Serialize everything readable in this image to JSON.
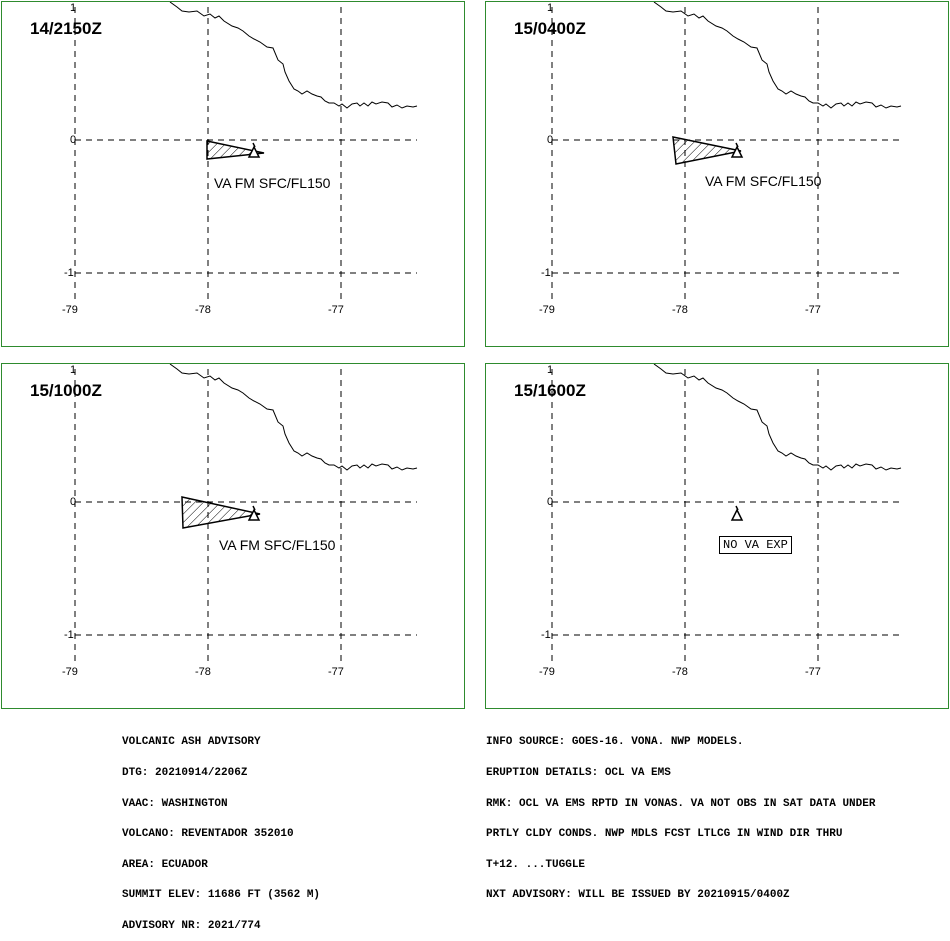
{
  "panels": [
    {
      "time": "14/2150Z",
      "label": "VA FM SFC/FL150",
      "ash": true
    },
    {
      "time": "15/0400Z",
      "label": "VA FM SFC/FL150",
      "ash": true
    },
    {
      "time": "15/1000Z",
      "label": "VA FM SFC/FL150",
      "ash": true
    },
    {
      "time": "15/1600Z",
      "label": "NO VA EXP",
      "ash": false
    }
  ],
  "axes": {
    "lon_ticks": [
      "-79",
      "-78",
      "-77"
    ],
    "lat_ticks": [
      "1",
      "0",
      "-1"
    ]
  },
  "advisory_left": [
    "VOLCANIC ASH ADVISORY",
    "DTG: 20210914/2206Z",
    "VAAC: WASHINGTON",
    "VOLCANO: REVENTADOR 352010",
    "AREA: ECUADOR",
    "SUMMIT ELEV: 11686 FT (3562 M)",
    "ADVISORY NR: 2021/774"
  ],
  "advisory_right": [
    "INFO SOURCE: GOES-16. VONA. NWP MODELS.",
    "ERUPTION DETAILS: OCL VA EMS",
    "RMK: OCL VA EMS RPTD IN VONAS. VA NOT OBS IN SAT DATA UNDER",
    "PRTLY CLDY CONDS. NWP MDLS FCST LTLCG IN WIND DIR THRU",
    "T+12. ...TUGGLE",
    "NXT ADVISORY: WILL BE ISSUED BY 20210915/0400Z"
  ],
  "colors": {
    "frame": "#2e8b2e",
    "lines": "#000000",
    "background": "#ffffff"
  },
  "map_features": [
    "coastline",
    "lat-lon-grid",
    "volcano-symbol",
    "hatched-ash-polygon"
  ]
}
